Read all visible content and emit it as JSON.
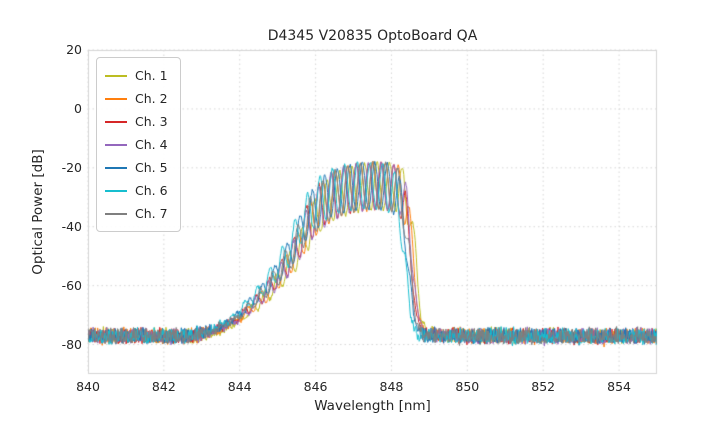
{
  "chart_data": {
    "type": "line",
    "title": "D4345 V20835 OptoBoard QA",
    "xlabel": "Wavelength [nm]",
    "ylabel": "Optical Power [dB]",
    "xlim": [
      840,
      855
    ],
    "ylim": [
      -90,
      20
    ],
    "xticks": [
      840,
      842,
      844,
      846,
      848,
      850,
      852,
      854
    ],
    "yticks": [
      20,
      0,
      -20,
      -40,
      -60,
      -80
    ],
    "grid": true,
    "grid_color": "#cccccc",
    "legend_position": "upper left",
    "noise_floor_db": -80,
    "noise_amplitude_db": 9,
    "mode_spacing_nm": 0.33,
    "ripple_depth_db": 16,
    "peak_wavelength_nm": 847.3,
    "peak_power_db": -18,
    "envelope": [
      [
        840.0,
        -81
      ],
      [
        842.6,
        -81
      ],
      [
        843.2,
        -78
      ],
      [
        843.8,
        -72
      ],
      [
        844.2,
        -66
      ],
      [
        844.6,
        -60
      ],
      [
        845.0,
        -52
      ],
      [
        845.4,
        -43
      ],
      [
        845.7,
        -33
      ],
      [
        846.0,
        -26
      ],
      [
        846.3,
        -22
      ],
      [
        846.7,
        -19.5
      ],
      [
        847.1,
        -18.5
      ],
      [
        847.5,
        -18.0
      ],
      [
        847.9,
        -18.5
      ],
      [
        848.15,
        -20
      ],
      [
        848.3,
        -26
      ],
      [
        848.45,
        -45
      ],
      [
        848.6,
        -70
      ],
      [
        848.8,
        -80
      ],
      [
        850.0,
        -81
      ],
      [
        855.0,
        -81
      ]
    ],
    "series": [
      {
        "name": "Ch. 1",
        "color": "#bcbd22",
        "offset_nm": 0.18,
        "phase": 0.0
      },
      {
        "name": "Ch. 2",
        "color": "#ff7f0e",
        "offset_nm": 0.12,
        "phase": 0.9
      },
      {
        "name": "Ch. 3",
        "color": "#d62728",
        "offset_nm": 0.06,
        "phase": 1.8
      },
      {
        "name": "Ch. 4",
        "color": "#9467bd",
        "offset_nm": 0.1,
        "phase": 2.7
      },
      {
        "name": "Ch. 5",
        "color": "#1f77b4",
        "offset_nm": -0.02,
        "phase": 3.6
      },
      {
        "name": "Ch. 6",
        "color": "#17becf",
        "offset_nm": -0.1,
        "phase": 4.5
      },
      {
        "name": "Ch. 7",
        "color": "#7f7f7f",
        "offset_nm": 0.02,
        "phase": 5.4
      }
    ]
  }
}
